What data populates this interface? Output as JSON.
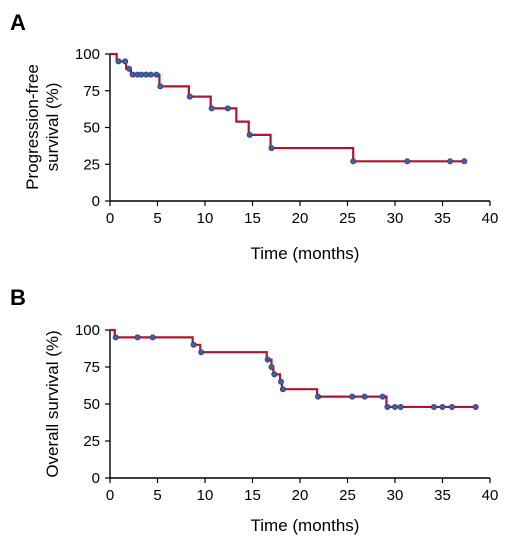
{
  "colors": {
    "curve": "#b1142e",
    "censor_marker": "#4a5d9e",
    "axis": "#000000",
    "background": "#ffffff"
  },
  "chart_data": [
    {
      "type": "line",
      "panel_label": "A",
      "title": "",
      "xlabel": "Time (months)",
      "ylabel_lines": [
        "Progression-free",
        "survival (%)"
      ],
      "xlim": [
        0,
        40
      ],
      "ylim": [
        0,
        100
      ],
      "xticks": [
        0,
        5,
        10,
        15,
        20,
        25,
        30,
        35,
        40
      ],
      "yticks": [
        0,
        25,
        50,
        75,
        100
      ],
      "grid": false,
      "series": [
        {
          "step": [
            [
              0,
              100
            ],
            [
              0.7,
              95
            ],
            [
              1.7,
              90
            ],
            [
              2.2,
              86
            ],
            [
              5.2,
              78
            ],
            [
              8.3,
              71
            ],
            [
              10.6,
              63
            ],
            [
              13.3,
              54
            ],
            [
              14.6,
              45
            ],
            [
              16.9,
              36
            ],
            [
              25.6,
              27
            ],
            [
              37.3,
              27
            ]
          ],
          "censored": [
            [
              0.9,
              95
            ],
            [
              1.6,
              95
            ],
            [
              2.0,
              90
            ],
            [
              2.4,
              86
            ],
            [
              2.9,
              86
            ],
            [
              3.3,
              86
            ],
            [
              3.8,
              86
            ],
            [
              4.3,
              86
            ],
            [
              4.9,
              86
            ],
            [
              5.3,
              78
            ],
            [
              8.4,
              71
            ],
            [
              10.7,
              63
            ],
            [
              12.4,
              63
            ],
            [
              14.7,
              45
            ],
            [
              17.0,
              36
            ],
            [
              25.6,
              27
            ],
            [
              31.3,
              27
            ],
            [
              35.8,
              27
            ],
            [
              37.3,
              27
            ]
          ]
        }
      ]
    },
    {
      "type": "line",
      "panel_label": "B",
      "title": "",
      "xlabel": "Time (months)",
      "ylabel_lines": [
        "Overall survival (%)"
      ],
      "xlim": [
        0,
        40
      ],
      "ylim": [
        0,
        100
      ],
      "xticks": [
        0,
        5,
        10,
        15,
        20,
        25,
        30,
        35,
        40
      ],
      "yticks": [
        0,
        25,
        50,
        75,
        100
      ],
      "grid": false,
      "series": [
        {
          "step": [
            [
              0,
              100
            ],
            [
              0.5,
              95
            ],
            [
              8.7,
              90
            ],
            [
              9.5,
              85
            ],
            [
              16.5,
              80
            ],
            [
              17.0,
              75
            ],
            [
              17.2,
              70
            ],
            [
              17.9,
              65
            ],
            [
              18.1,
              60
            ],
            [
              21.8,
              55
            ],
            [
              29.1,
              48
            ],
            [
              38.5,
              48
            ]
          ],
          "censored": [
            [
              0.6,
              95
            ],
            [
              2.9,
              95
            ],
            [
              4.5,
              95
            ],
            [
              8.8,
              90
            ],
            [
              9.6,
              85
            ],
            [
              16.6,
              80
            ],
            [
              17.0,
              75
            ],
            [
              17.3,
              70
            ],
            [
              18.0,
              65
            ],
            [
              18.2,
              60
            ],
            [
              21.9,
              55
            ],
            [
              25.5,
              55
            ],
            [
              26.8,
              55
            ],
            [
              28.7,
              55
            ],
            [
              29.2,
              48
            ],
            [
              30.0,
              48
            ],
            [
              30.6,
              48
            ],
            [
              34.1,
              48
            ],
            [
              35.0,
              48
            ],
            [
              36.0,
              48
            ],
            [
              38.5,
              48
            ]
          ]
        }
      ]
    }
  ]
}
